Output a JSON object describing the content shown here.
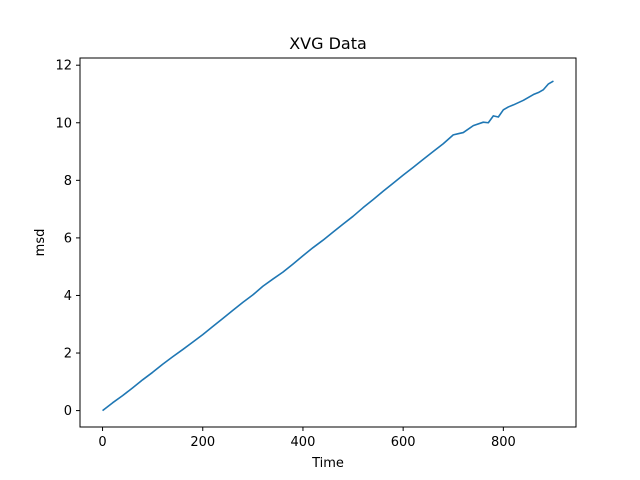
{
  "chart_data": {
    "type": "line",
    "title": "XVG Data",
    "xlabel": "Time",
    "ylabel": "msd",
    "xlim": [
      -45,
      945
    ],
    "ylim": [
      -0.57,
      12.25
    ],
    "xticks": [
      0,
      200,
      400,
      600,
      800
    ],
    "yticks": [
      0,
      2,
      4,
      6,
      8,
      10,
      12
    ],
    "grid": false,
    "legend": "none",
    "series": [
      {
        "color": "#1f77b4",
        "x": [
          0,
          20,
          40,
          60,
          80,
          100,
          120,
          140,
          160,
          180,
          200,
          220,
          240,
          260,
          280,
          300,
          320,
          340,
          360,
          380,
          400,
          420,
          440,
          460,
          480,
          500,
          520,
          540,
          560,
          580,
          600,
          620,
          640,
          660,
          680,
          700,
          710,
          720,
          740,
          760,
          770,
          780,
          790,
          800,
          810,
          820,
          840,
          860,
          870,
          880,
          890,
          900
        ],
        "values": [
          0.0,
          0.27,
          0.52,
          0.79,
          1.07,
          1.33,
          1.61,
          1.87,
          2.12,
          2.38,
          2.64,
          2.92,
          3.2,
          3.48,
          3.76,
          4.02,
          4.32,
          4.57,
          4.81,
          5.09,
          5.38,
          5.66,
          5.92,
          6.2,
          6.48,
          6.75,
          7.05,
          7.33,
          7.62,
          7.9,
          8.18,
          8.45,
          8.73,
          9.0,
          9.27,
          9.58,
          9.62,
          9.66,
          9.9,
          10.02,
          10.0,
          10.24,
          10.2,
          10.45,
          10.55,
          10.62,
          10.78,
          10.98,
          11.05,
          11.15,
          11.35,
          11.45
        ]
      }
    ]
  }
}
